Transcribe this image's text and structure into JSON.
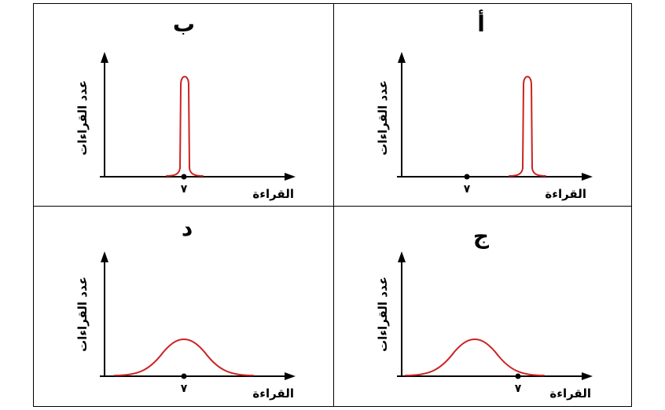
{
  "curve_color": "#cc2222",
  "axis_color": "#000000",
  "panels": [
    {
      "id": "a",
      "title": "أ",
      "ylabel": "عدد القراءات",
      "xlabel": "القراءة",
      "tick_label": "٧",
      "curve": "narrow-spike",
      "relative_to_marker": "right"
    },
    {
      "id": "b",
      "title": "ب",
      "ylabel": "عدد القراءات",
      "xlabel": "القراءة",
      "tick_label": "٧",
      "curve": "narrow-spike",
      "relative_to_marker": "centered"
    },
    {
      "id": "c",
      "title": "ج",
      "ylabel": "عدد القراءات",
      "xlabel": "القراءة",
      "tick_label": "٧",
      "curve": "wide-bell",
      "relative_to_marker": "left"
    },
    {
      "id": "d",
      "title": "د",
      "ylabel": "عدد القراءات",
      "xlabel": "القراءة",
      "tick_label": "٧",
      "curve": "wide-bell",
      "relative_to_marker": "centered"
    }
  ]
}
